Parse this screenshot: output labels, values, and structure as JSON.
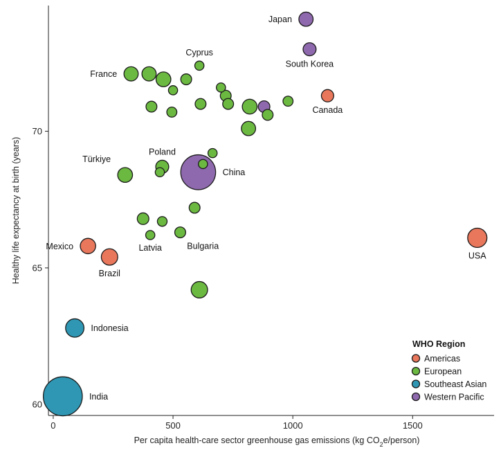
{
  "chart_data": {
    "type": "scatter",
    "title": "",
    "xlabel_prefix": "Per capita health-care sector greenhouse gas emissions (kg CO",
    "xlabel_sub": "2",
    "xlabel_suffix": "e/person)",
    "ylabel": "Healthy life expectancy at birth (years)",
    "xlim": [
      -20,
      1840
    ],
    "ylim": [
      59.6,
      74.6
    ],
    "xticks": [
      0,
      500,
      1000,
      1500
    ],
    "yticks": [
      60,
      65,
      70
    ],
    "legend": {
      "title": "WHO Region",
      "placement": "bottom-right",
      "entries": [
        {
          "name": "Americas",
          "color": "#e8775c"
        },
        {
          "name": "European",
          "color": "#6cb941"
        },
        {
          "name": "Southeast Asian",
          "color": "#2f97b3"
        },
        {
          "name": "Western Pacific",
          "color": "#8e69ad"
        }
      ]
    },
    "points": [
      {
        "x": 1055,
        "y": 74.1,
        "size": 6,
        "region": "Western Pacific",
        "label": "Japan",
        "label_pos": "left"
      },
      {
        "x": 1070,
        "y": 73.0,
        "size": 5,
        "region": "Western Pacific",
        "label": "South Korea",
        "label_pos": "below"
      },
      {
        "x": 880,
        "y": 70.9,
        "size": 4,
        "region": "Western Pacific",
        "label": ""
      },
      {
        "x": 605,
        "y": 68.5,
        "size": 36,
        "region": "Western Pacific",
        "label": "China",
        "label_pos": "right"
      },
      {
        "x": 1145,
        "y": 71.3,
        "size": 4.5,
        "region": "Americas",
        "label": "Canada",
        "label_pos": "below"
      },
      {
        "x": 1770,
        "y": 66.1,
        "size": 11,
        "region": "Americas",
        "label": "USA",
        "label_pos": "below"
      },
      {
        "x": 145,
        "y": 65.8,
        "size": 7,
        "region": "Americas",
        "label": "Mexico",
        "label_pos": "left"
      },
      {
        "x": 235,
        "y": 65.4,
        "size": 8,
        "region": "Americas",
        "label": "Brazil",
        "label_pos": "below"
      },
      {
        "x": 90,
        "y": 62.8,
        "size": 10,
        "region": "Southeast Asian",
        "label": "Indonesia",
        "label_pos": "right"
      },
      {
        "x": 40,
        "y": 60.3,
        "size": 45,
        "region": "Southeast Asian",
        "label": "India",
        "label_pos": "right"
      },
      {
        "x": 610,
        "y": 72.4,
        "size": 2.5,
        "region": "European",
        "label": "Cyprus",
        "label_pos": "above"
      },
      {
        "x": 325,
        "y": 72.1,
        "size": 6,
        "region": "European",
        "label": "France",
        "label_pos": "left"
      },
      {
        "x": 400,
        "y": 72.1,
        "size": 6,
        "region": "European",
        "label": ""
      },
      {
        "x": 460,
        "y": 71.9,
        "size": 6.5,
        "region": "European",
        "label": ""
      },
      {
        "x": 555,
        "y": 71.9,
        "size": 3.5,
        "region": "European",
        "label": ""
      },
      {
        "x": 500,
        "y": 71.5,
        "size": 2.5,
        "region": "European",
        "label": ""
      },
      {
        "x": 700,
        "y": 71.6,
        "size": 2.5,
        "region": "European",
        "label": ""
      },
      {
        "x": 720,
        "y": 71.3,
        "size": 3.5,
        "region": "European",
        "label": ""
      },
      {
        "x": 410,
        "y": 70.9,
        "size": 3.5,
        "region": "European",
        "label": ""
      },
      {
        "x": 495,
        "y": 70.7,
        "size": 3,
        "region": "European",
        "label": ""
      },
      {
        "x": 615,
        "y": 71.0,
        "size": 3.5,
        "region": "European",
        "label": ""
      },
      {
        "x": 730,
        "y": 71.0,
        "size": 3.5,
        "region": "European",
        "label": ""
      },
      {
        "x": 820,
        "y": 70.9,
        "size": 6.5,
        "region": "European",
        "label": ""
      },
      {
        "x": 895,
        "y": 70.6,
        "size": 3.5,
        "region": "European",
        "label": ""
      },
      {
        "x": 980,
        "y": 71.1,
        "size": 3,
        "region": "European",
        "label": ""
      },
      {
        "x": 815,
        "y": 70.1,
        "size": 6,
        "region": "European",
        "label": ""
      },
      {
        "x": 665,
        "y": 69.2,
        "size": 2.5,
        "region": "European",
        "label": ""
      },
      {
        "x": 455,
        "y": 68.7,
        "size": 5,
        "region": "European",
        "label": "Poland",
        "label_pos": "above"
      },
      {
        "x": 445,
        "y": 68.5,
        "size": 2.5,
        "region": "European",
        "label": ""
      },
      {
        "x": 625,
        "y": 68.8,
        "size": 2.5,
        "region": "European",
        "label": ""
      },
      {
        "x": 300,
        "y": 68.4,
        "size": 6.5,
        "region": "European",
        "label": "Türkiye",
        "label_pos": "above-left"
      },
      {
        "x": 590,
        "y": 67.2,
        "size": 3.5,
        "region": "European",
        "label": ""
      },
      {
        "x": 375,
        "y": 66.8,
        "size": 4,
        "region": "European",
        "label": ""
      },
      {
        "x": 455,
        "y": 66.7,
        "size": 2.8,
        "region": "European",
        "label": ""
      },
      {
        "x": 405,
        "y": 66.2,
        "size": 2.5,
        "region": "European",
        "label": "Latvia",
        "label_pos": "below"
      },
      {
        "x": 530,
        "y": 66.3,
        "size": 3.5,
        "region": "European",
        "label": "Bulgaria",
        "label_pos": "below-right"
      },
      {
        "x": 610,
        "y": 64.2,
        "size": 8,
        "region": "European",
        "label": ""
      }
    ]
  }
}
